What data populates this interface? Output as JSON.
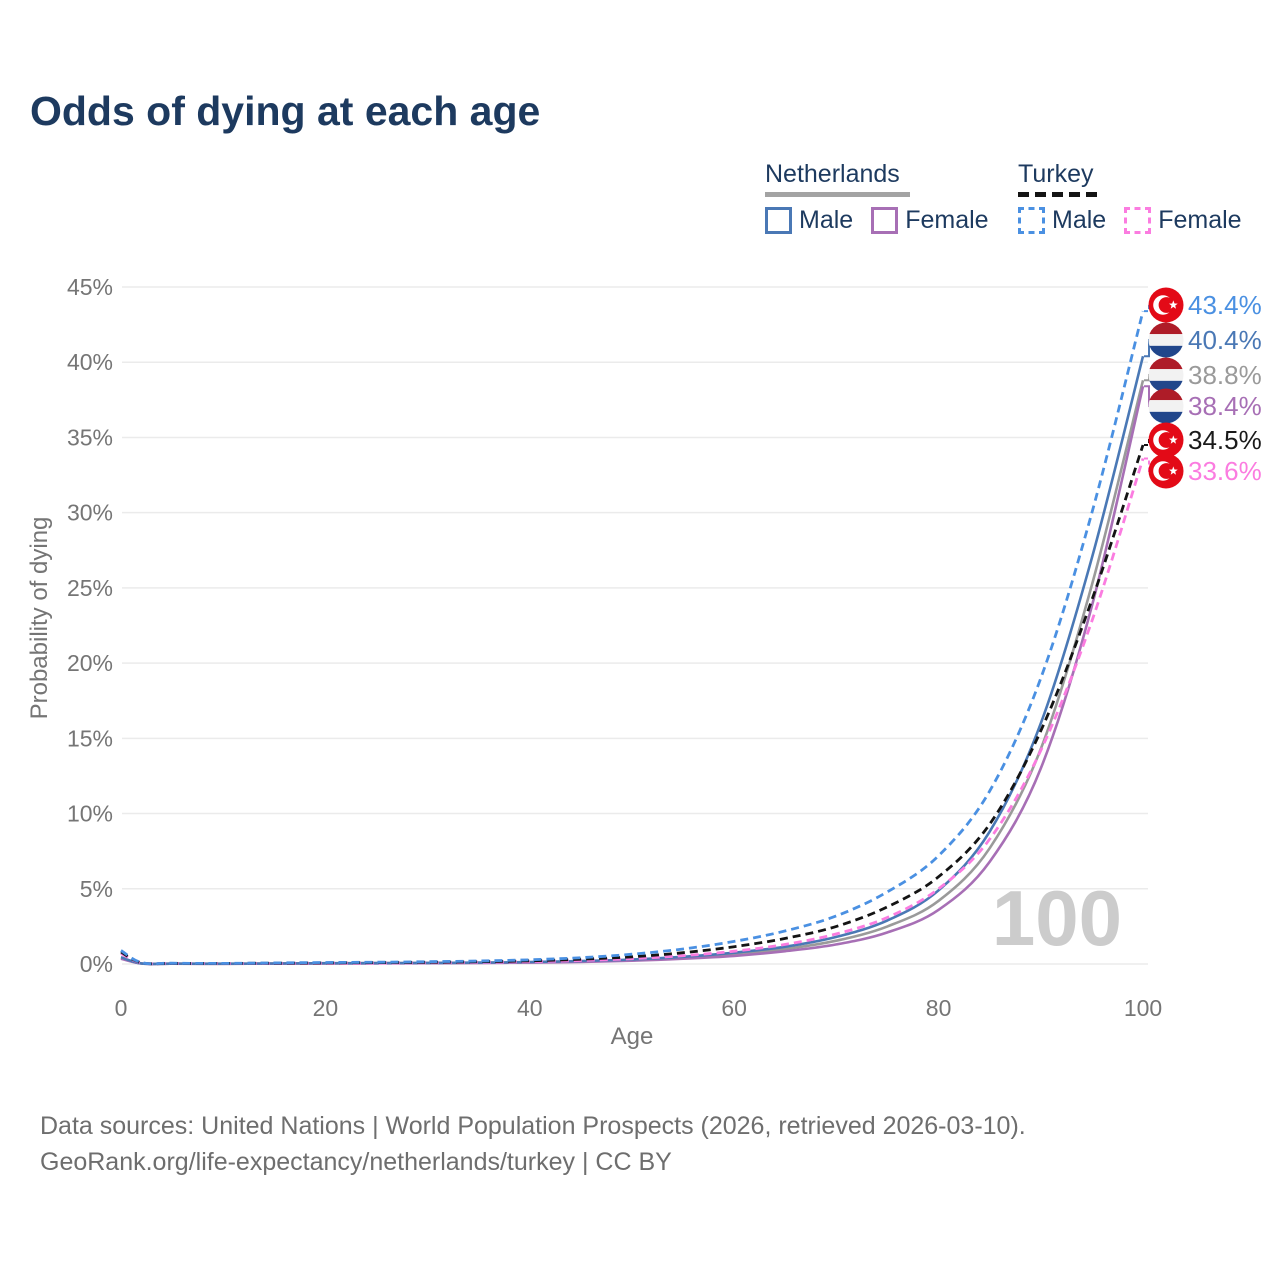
{
  "title": "Odds of dying at each age",
  "legend": {
    "groups": [
      {
        "name": "Netherlands",
        "underline": "solid",
        "underline_color": "#a3a3a3",
        "items": [
          {
            "label": "Male",
            "color": "#4a78b5",
            "dashed": false
          },
          {
            "label": "Female",
            "color": "#a76fb5",
            "dashed": false
          }
        ]
      },
      {
        "name": "Turkey",
        "underline": "dashed",
        "underline_color": "#141414",
        "items": [
          {
            "label": "Male",
            "color": "#4a90e2",
            "dashed": true
          },
          {
            "label": "Female",
            "color": "#fb7ce0",
            "dashed": true
          }
        ]
      }
    ]
  },
  "chart_data": {
    "type": "line",
    "title": "Odds of dying at each age",
    "xlabel": "Age",
    "ylabel": "Probability of dying",
    "xlim": [
      0,
      100
    ],
    "ylim": [
      0,
      45
    ],
    "grid": "horizontal",
    "watermark": "100",
    "x_ticks": [
      {
        "v": 0,
        "label": "0"
      },
      {
        "v": 20,
        "label": "20"
      },
      {
        "v": 40,
        "label": "40"
      },
      {
        "v": 60,
        "label": "60"
      },
      {
        "v": 80,
        "label": "80"
      },
      {
        "v": 100,
        "label": "100"
      }
    ],
    "y_ticks": [
      {
        "v": 0,
        "label": "0%"
      },
      {
        "v": 5,
        "label": "5%"
      },
      {
        "v": 10,
        "label": "10%"
      },
      {
        "v": 15,
        "label": "15%"
      },
      {
        "v": 20,
        "label": "20%"
      },
      {
        "v": 25,
        "label": "25%"
      },
      {
        "v": 30,
        "label": "30%"
      },
      {
        "v": 35,
        "label": "35%"
      },
      {
        "v": 40,
        "label": "40%"
      },
      {
        "v": 45,
        "label": "45%"
      }
    ],
    "x": [
      0,
      2,
      5,
      10,
      15,
      20,
      25,
      30,
      35,
      40,
      45,
      50,
      55,
      60,
      65,
      70,
      75,
      80,
      85,
      90,
      95,
      100
    ],
    "series": [
      {
        "id": "nl-total",
        "country": "Netherlands",
        "sex": "both",
        "dashed": false,
        "color": "#9a9a9a",
        "label_color": "#9a9a9a",
        "flag": "nl",
        "end_label": "38.8%",
        "values": [
          0.4,
          0.03,
          0.02,
          0.01,
          0.03,
          0.04,
          0.05,
          0.06,
          0.08,
          0.11,
          0.17,
          0.26,
          0.41,
          0.64,
          1.0,
          1.55,
          2.5,
          4.2,
          7.7,
          14.3,
          25.2,
          38.8
        ]
      },
      {
        "id": "nl-female",
        "country": "Netherlands",
        "sex": "female",
        "dashed": false,
        "color": "#a76fb5",
        "label_color": "#a76fb5",
        "flag": "nl",
        "end_label": "38.4%",
        "values": [
          0.35,
          0.03,
          0.02,
          0.01,
          0.02,
          0.03,
          0.04,
          0.05,
          0.07,
          0.09,
          0.14,
          0.22,
          0.35,
          0.54,
          0.85,
          1.3,
          2.1,
          3.6,
          6.8,
          13.0,
          23.8,
          38.4
        ]
      },
      {
        "id": "nl-male",
        "country": "Netherlands",
        "sex": "male",
        "dashed": false,
        "color": "#4a78b5",
        "label_color": "#4a78b5",
        "flag": "nl",
        "end_label": "40.4%",
        "values": [
          0.45,
          0.04,
          0.02,
          0.02,
          0.03,
          0.05,
          0.06,
          0.07,
          0.09,
          0.13,
          0.2,
          0.3,
          0.48,
          0.75,
          1.15,
          1.8,
          2.9,
          4.9,
          8.8,
          16.0,
          27.0,
          40.4
        ]
      },
      {
        "id": "tr-female",
        "country": "Turkey",
        "sex": "female",
        "dashed": true,
        "color": "#fb7ce0",
        "label_color": "#fb7ce0",
        "flag": "tr",
        "end_label": "33.6%",
        "values": [
          0.7,
          0.07,
          0.04,
          0.03,
          0.04,
          0.05,
          0.06,
          0.08,
          0.11,
          0.15,
          0.23,
          0.35,
          0.55,
          0.85,
          1.3,
          2.0,
          3.1,
          5.0,
          8.3,
          14.2,
          22.8,
          33.6
        ]
      },
      {
        "id": "tr-total",
        "country": "Turkey",
        "sex": "both",
        "dashed": true,
        "color": "#141414",
        "label_color": "#1a1a1a",
        "flag": "tr",
        "end_label": "34.5%",
        "values": [
          0.8,
          0.08,
          0.04,
          0.04,
          0.05,
          0.07,
          0.09,
          0.11,
          0.15,
          0.21,
          0.32,
          0.48,
          0.75,
          1.15,
          1.7,
          2.5,
          3.8,
          5.8,
          9.3,
          15.5,
          24.2,
          34.5
        ]
      },
      {
        "id": "tr-male",
        "country": "Turkey",
        "sex": "male",
        "dashed": true,
        "color": "#4a90e2",
        "label_color": "#4a90e2",
        "flag": "tr",
        "end_label": "43.4%",
        "values": [
          0.9,
          0.09,
          0.05,
          0.04,
          0.07,
          0.1,
          0.12,
          0.15,
          0.2,
          0.28,
          0.42,
          0.65,
          1.0,
          1.5,
          2.2,
          3.2,
          4.8,
          7.2,
          11.5,
          19.0,
          30.0,
          43.4
        ]
      }
    ],
    "flag_colors": {
      "turkey_red": "#e30a17",
      "nl_red": "#ae1c28",
      "nl_white": "#f2f2f2",
      "nl_blue": "#21468b"
    }
  },
  "footer": {
    "line1": "Data sources: United Nations | World Population Prospects (2026, retrieved 2026-03-10).",
    "line2": "GeoRank.org/life-expectancy/netherlands/turkey | CC BY"
  }
}
